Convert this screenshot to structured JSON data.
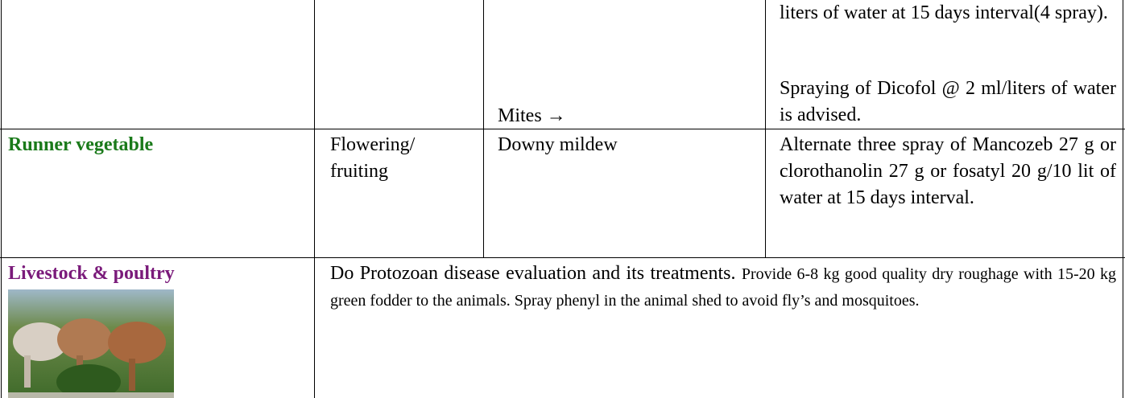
{
  "table": {
    "rows": [
      {
        "pest": "Mites →",
        "advice": [
          "liters of water at 15 days interval(4 spray).",
          "Spraying of Dicofol @ 2 ml/liters of water is advised."
        ]
      },
      {
        "crop": "Runner vegetable",
        "stage": "Flowering/ fruiting",
        "pest": "Downy mildew",
        "advice": [
          "Alternate three spray of Mancozeb 27 g or clorothanolin 27 g or fosatyl 20 g/10 lit of water at 15 days interval."
        ]
      },
      {
        "crop": "Livestock & poultry",
        "advice": [
          "Do Protozoan disease evaluation and its treatments.",
          "Provide 6-8 kg good quality dry roughage with 15-20 kg green fodder to the animals. Spray phenyl in the animal shed to avoid fly’s and mosquitoes."
        ]
      }
    ]
  }
}
